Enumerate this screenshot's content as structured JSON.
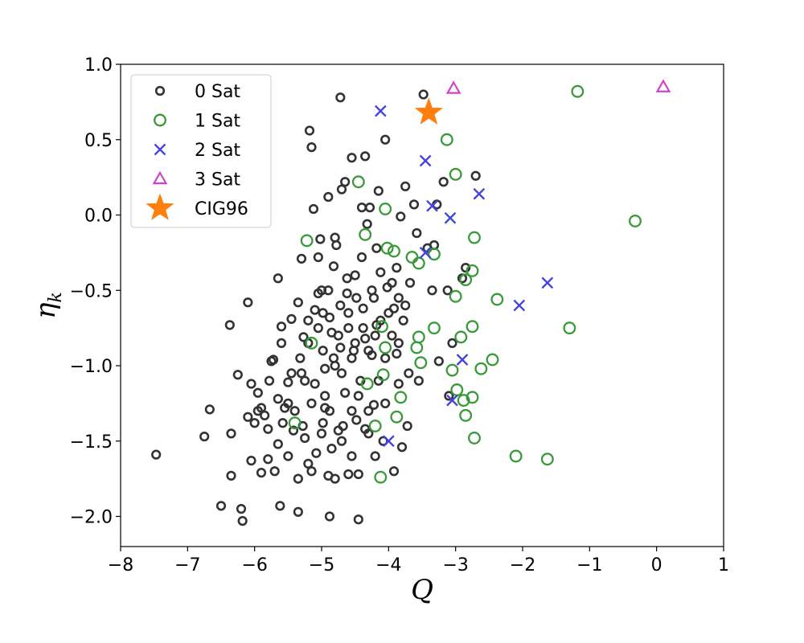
{
  "chart_data": {
    "type": "scatter",
    "title": "",
    "xlabel": "Q",
    "ylabel": "η",
    "ylabel_subscript": "k",
    "xlim": [
      -8,
      1
    ],
    "ylim": [
      -2.2,
      1.0
    ],
    "xticks": [
      -8,
      -7,
      -6,
      -5,
      -4,
      -3,
      -2,
      -1,
      0,
      1
    ],
    "yticks": [
      -2.0,
      -1.5,
      -1.0,
      -0.5,
      0.0,
      0.5,
      1.0
    ],
    "xtick_labels": [
      "−8",
      "−7",
      "−6",
      "−5",
      "−4",
      "−3",
      "−2",
      "−1",
      "0",
      "1"
    ],
    "ytick_labels": [
      "−2.0",
      "−1.5",
      "−1.0",
      "−0.5",
      "0.0",
      "0.5",
      "1.0"
    ],
    "legend_position": "upper-left",
    "series": [
      {
        "name": "0 Sat",
        "marker": "open-circle-small",
        "color": "#333333",
        "points": [
          [
            -7.47,
            -1.59
          ],
          [
            -6.67,
            -1.29
          ],
          [
            -6.75,
            -1.47
          ],
          [
            -6.5,
            -1.93
          ],
          [
            -6.35,
            -1.73
          ],
          [
            -6.35,
            -1.45
          ],
          [
            -6.25,
            -1.06
          ],
          [
            -6.37,
            -0.73
          ],
          [
            -6.2,
            -1.95
          ],
          [
            -6.18,
            -2.03
          ],
          [
            -6.1,
            -1.34
          ],
          [
            -6.1,
            -0.58
          ],
          [
            -6.05,
            -1.12
          ],
          [
            -5.95,
            -1.18
          ],
          [
            -6.05,
            -1.63
          ],
          [
            -5.95,
            -1.3
          ],
          [
            -5.9,
            -1.71
          ],
          [
            -5.85,
            -1.33
          ],
          [
            -5.8,
            -1.62
          ],
          [
            -5.7,
            -1.7
          ],
          [
            -5.75,
            -0.97
          ],
          [
            -5.65,
            -0.42
          ],
          [
            -5.65,
            -1.22
          ],
          [
            -5.6,
            -0.74
          ],
          [
            -5.6,
            -0.85
          ],
          [
            -5.5,
            -1.11
          ],
          [
            -5.45,
            -0.69
          ],
          [
            -5.4,
            -1.3
          ],
          [
            -5.35,
            -0.58
          ],
          [
            -5.3,
            -0.29
          ],
          [
            -5.27,
            -0.81
          ],
          [
            -5.25,
            -1.1
          ],
          [
            -5.2,
            -0.7
          ],
          [
            -5.18,
            0.56
          ],
          [
            -5.15,
            0.45
          ],
          [
            -5.12,
            0.04
          ],
          [
            -5.1,
            -0.63
          ],
          [
            -5.05,
            -0.52
          ],
          [
            -5.02,
            -0.16
          ],
          [
            -5.0,
            -0.5
          ],
          [
            -4.98,
            -0.65
          ],
          [
            -4.95,
            -1.02
          ],
          [
            -4.9,
            0.12
          ],
          [
            -4.88,
            -1.3
          ],
          [
            -4.85,
            -0.78
          ],
          [
            -4.82,
            -0.95
          ],
          [
            -4.8,
            -0.15
          ],
          [
            -4.78,
            -0.2
          ],
          [
            -4.75,
            -1.43
          ],
          [
            -4.72,
            0.78
          ],
          [
            -4.7,
            0.17
          ],
          [
            -4.65,
            0.22
          ],
          [
            -4.62,
            -0.42
          ],
          [
            -4.6,
            -0.65
          ],
          [
            -4.55,
            0.38
          ],
          [
            -4.55,
            -0.95
          ],
          [
            -4.5,
            -0.4
          ],
          [
            -4.48,
            -1.36
          ],
          [
            -4.45,
            -1.2
          ],
          [
            -4.4,
            0.05
          ],
          [
            -4.38,
            -0.62
          ],
          [
            -4.35,
            0.39
          ],
          [
            -4.32,
            -0.06
          ],
          [
            -4.28,
            0.05
          ],
          [
            -4.25,
            -0.93
          ],
          [
            -4.22,
            -0.55
          ],
          [
            -4.18,
            -0.22
          ],
          [
            -4.15,
            0.16
          ],
          [
            -4.12,
            -0.7
          ],
          [
            -4.08,
            -1.5
          ],
          [
            -4.05,
            0.5
          ],
          [
            -4.0,
            -0.65
          ],
          [
            -3.95,
            -0.45
          ],
          [
            -3.92,
            -1.7
          ],
          [
            -3.88,
            -0.35
          ],
          [
            -3.85,
            -0.85
          ],
          [
            -3.82,
            -0.01
          ],
          [
            -3.8,
            -1.54
          ],
          [
            -3.75,
            0.19
          ],
          [
            -3.72,
            -1.4
          ],
          [
            -3.68,
            -0.45
          ],
          [
            -3.62,
            0.07
          ],
          [
            -3.58,
            -0.12
          ],
          [
            -3.55,
            -1.1
          ],
          [
            -3.48,
            0.8
          ],
          [
            -3.42,
            -0.22
          ],
          [
            -3.35,
            -0.5
          ],
          [
            -3.32,
            -0.2
          ],
          [
            -3.28,
            0.07
          ],
          [
            -3.25,
            -0.97
          ],
          [
            -3.18,
            0.22
          ],
          [
            -3.12,
            -0.5
          ],
          [
            -3.05,
            -0.85
          ],
          [
            -3.1,
            -1.2
          ],
          [
            -2.9,
            -0.42
          ],
          [
            -2.85,
            -0.35
          ],
          [
            -2.7,
            0.26
          ],
          [
            -5.5,
            -1.25
          ],
          [
            -5.3,
            -1.05
          ],
          [
            -4.95,
            -1.2
          ],
          [
            -4.7,
            -1.05
          ],
          [
            -4.55,
            -1.6
          ],
          [
            -4.3,
            -1.3
          ],
          [
            -4.15,
            -1.1
          ],
          [
            -5.15,
            -1.7
          ],
          [
            -5.0,
            -1.45
          ],
          [
            -4.6,
            -1.72
          ],
          [
            -4.45,
            -2.02
          ],
          [
            -4.88,
            -2.0
          ],
          [
            -5.62,
            -1.93
          ],
          [
            -5.35,
            -1.97
          ],
          [
            -4.85,
            -1.55
          ],
          [
            -4.3,
            -1.45
          ],
          [
            -4.2,
            -1.6
          ],
          [
            -4.68,
            -1.4
          ],
          [
            -4.9,
            -1.73
          ],
          [
            -5.2,
            -1.65
          ],
          [
            -5.35,
            -1.75
          ],
          [
            -4.8,
            -1.75
          ],
          [
            -4.45,
            -1.72
          ],
          [
            -5.72,
            -0.96
          ],
          [
            -5.55,
            -1.28
          ],
          [
            -5.42,
            -1.43
          ],
          [
            -5.1,
            -1.12
          ],
          [
            -4.98,
            -0.9
          ],
          [
            -4.75,
            -0.8
          ],
          [
            -4.5,
            -0.85
          ],
          [
            -4.38,
            -0.75
          ],
          [
            -4.25,
            -0.5
          ],
          [
            -4.12,
            -0.38
          ],
          [
            -4.02,
            -0.48
          ],
          [
            -3.92,
            -0.62
          ],
          [
            -3.88,
            -0.92
          ],
          [
            -3.78,
            -0.7
          ],
          [
            -3.7,
            -1.05
          ],
          [
            -5.05,
            -0.28
          ],
          [
            -4.82,
            -0.34
          ],
          [
            -4.62,
            -0.52
          ],
          [
            -4.4,
            -0.28
          ],
          [
            -4.2,
            -0.8
          ],
          [
            -4.05,
            -1.25
          ],
          [
            -3.85,
            -1.12
          ],
          [
            -5.28,
            -1.4
          ],
          [
            -5.15,
            -1.25
          ],
          [
            -4.95,
            -1.28
          ],
          [
            -4.8,
            -1.0
          ],
          [
            -4.65,
            -1.18
          ],
          [
            -4.52,
            -0.9
          ],
          [
            -4.42,
            -1.1
          ],
          [
            -4.3,
            -0.9
          ],
          [
            -4.18,
            -0.73
          ],
          [
            -4.05,
            -0.95
          ],
          [
            -3.95,
            -0.8
          ],
          [
            -3.85,
            -0.55
          ],
          [
            -3.75,
            -0.6
          ],
          [
            -4.9,
            -0.5
          ],
          [
            -4.72,
            -0.6
          ],
          [
            -4.6,
            -0.75
          ],
          [
            -4.48,
            -0.55
          ],
          [
            -4.35,
            -0.82
          ],
          [
            -5.8,
            -1.42
          ],
          [
            -5.65,
            -1.52
          ],
          [
            -5.5,
            -1.6
          ],
          [
            -5.25,
            -1.48
          ],
          [
            -5.08,
            -1.58
          ],
          [
            -4.98,
            -1.38
          ],
          [
            -4.7,
            -1.5
          ],
          [
            -4.55,
            -1.3
          ],
          [
            -4.35,
            -1.42
          ],
          [
            -4.22,
            -1.26
          ],
          [
            -6.0,
            -1.38
          ],
          [
            -5.9,
            -1.28
          ],
          [
            -5.78,
            -1.1
          ],
          [
            -5.58,
            -1.38
          ],
          [
            -5.45,
            -1.05
          ],
          [
            -5.32,
            -0.95
          ],
          [
            -5.2,
            -0.85
          ],
          [
            -5.05,
            -0.75
          ],
          [
            -4.88,
            -0.68
          ],
          [
            -4.72,
            -0.88
          ]
        ]
      },
      {
        "name": "1 Sat",
        "marker": "open-circle",
        "color": "#3a9a3a",
        "points": [
          [
            -1.18,
            0.82
          ],
          [
            -0.32,
            -0.04
          ],
          [
            -3.13,
            0.5
          ],
          [
            -3.0,
            0.27
          ],
          [
            -2.72,
            -0.15
          ],
          [
            -2.75,
            -0.37
          ],
          [
            -2.85,
            -0.43
          ],
          [
            -3.0,
            -0.54
          ],
          [
            -2.38,
            -0.56
          ],
          [
            -2.75,
            -0.74
          ],
          [
            -2.92,
            -0.81
          ],
          [
            -3.32,
            -0.75
          ],
          [
            -3.55,
            -0.81
          ],
          [
            -3.58,
            -0.88
          ],
          [
            -3.52,
            -0.98
          ],
          [
            -2.45,
            -0.96
          ],
          [
            -2.62,
            -1.02
          ],
          [
            -3.05,
            -1.03
          ],
          [
            -2.98,
            -1.16
          ],
          [
            -2.75,
            -1.21
          ],
          [
            -2.88,
            -1.23
          ],
          [
            -2.85,
            -1.33
          ],
          [
            -2.72,
            -1.48
          ],
          [
            -2.1,
            -1.6
          ],
          [
            -1.63,
            -1.62
          ],
          [
            -1.3,
            -0.75
          ],
          [
            -4.45,
            0.22
          ],
          [
            -4.05,
            0.04
          ],
          [
            -5.22,
            -0.17
          ],
          [
            -4.35,
            -0.13
          ],
          [
            -4.02,
            -0.22
          ],
          [
            -3.92,
            -0.24
          ],
          [
            -3.65,
            -0.28
          ],
          [
            -3.55,
            -0.32
          ],
          [
            -3.32,
            -0.26
          ],
          [
            -4.1,
            -0.74
          ],
          [
            -4.05,
            -0.88
          ],
          [
            -4.08,
            -1.06
          ],
          [
            -4.32,
            -1.12
          ],
          [
            -3.82,
            -1.21
          ],
          [
            -3.88,
            -1.34
          ],
          [
            -4.2,
            -1.4
          ],
          [
            -5.4,
            -1.38
          ],
          [
            -5.15,
            -0.85
          ],
          [
            -4.12,
            -1.74
          ]
        ]
      },
      {
        "name": "2 Sat",
        "marker": "x",
        "color": "#4444dd",
        "points": [
          [
            -4.12,
            0.69
          ],
          [
            -3.45,
            0.36
          ],
          [
            -2.65,
            0.14
          ],
          [
            -3.35,
            0.06
          ],
          [
            -3.08,
            -0.02
          ],
          [
            -3.45,
            -0.25
          ],
          [
            -1.63,
            -0.45
          ],
          [
            -2.05,
            -0.6
          ],
          [
            -2.9,
            -0.96
          ],
          [
            -3.05,
            -1.23
          ],
          [
            -4.0,
            -1.5
          ]
        ]
      },
      {
        "name": "3 Sat",
        "marker": "triangle",
        "color": "#cc44cc",
        "points": [
          [
            -3.03,
            0.84
          ],
          [
            0.1,
            0.85
          ]
        ]
      },
      {
        "name": "CIG96",
        "marker": "star",
        "color": "#ff7f0e",
        "points": [
          [
            -3.4,
            0.68
          ]
        ]
      }
    ]
  }
}
